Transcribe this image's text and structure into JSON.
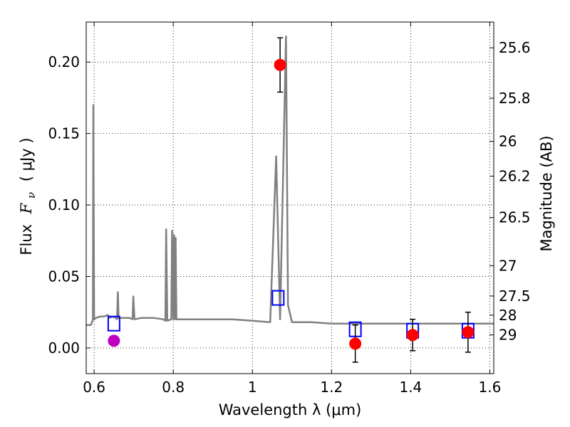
{
  "chart_data": {
    "type": "scatter",
    "xlabel": "Wavelength  λ (μm)",
    "ylabel_prefix": "Flux",
    "ylabel_symbol": "F",
    "ylabel_subscript": "ν",
    "ylabel_unit": "( μJy )",
    "y2label": "Magnitude (AB)",
    "xlim": [
      0.58,
      1.61
    ],
    "ylim": [
      -0.018,
      0.228
    ],
    "grid": true,
    "x_ticks": [
      {
        "value": 0.6,
        "label": "0.6"
      },
      {
        "value": 0.8,
        "label": "0.8"
      },
      {
        "value": 1.0,
        "label": "1"
      },
      {
        "value": 1.2,
        "label": "1.2"
      },
      {
        "value": 1.4,
        "label": "1.4"
      },
      {
        "value": 1.6,
        "label": "1.6"
      }
    ],
    "y_ticks": [
      {
        "value": 0.0,
        "label": "0.00"
      },
      {
        "value": 0.05,
        "label": "0.05"
      },
      {
        "value": 0.1,
        "label": "0.10"
      },
      {
        "value": 0.15,
        "label": "0.15"
      },
      {
        "value": 0.2,
        "label": "0.20"
      }
    ],
    "y2_ticks": [
      {
        "flux": 0.21,
        "label": "25.6"
      },
      {
        "flux": 0.1747,
        "label": "25.8"
      },
      {
        "flux": 0.1445,
        "label": "26"
      },
      {
        "flux": 0.1202,
        "label": "26.2"
      },
      {
        "flux": 0.0912,
        "label": "26.5"
      },
      {
        "flux": 0.0575,
        "label": "27"
      },
      {
        "flux": 0.0363,
        "label": "27.5"
      },
      {
        "flux": 0.0229,
        "label": "28"
      },
      {
        "flux": 0.0091,
        "label": "29"
      }
    ],
    "series": [
      {
        "style": "line",
        "color": "#808080",
        "points": [
          [
            0.58,
            0.016
          ],
          [
            0.592,
            0.016
          ],
          [
            0.597,
            0.02
          ],
          [
            0.598,
            0.17
          ],
          [
            0.6,
            0.02
          ],
          [
            0.605,
            0.021
          ],
          [
            0.615,
            0.022
          ],
          [
            0.625,
            0.022
          ],
          [
            0.635,
            0.023
          ],
          [
            0.64,
            0.021
          ],
          [
            0.645,
            0.022
          ],
          [
            0.655,
            0.021
          ],
          [
            0.658,
            0.02
          ],
          [
            0.66,
            0.039
          ],
          [
            0.662,
            0.021
          ],
          [
            0.675,
            0.021
          ],
          [
            0.69,
            0.021
          ],
          [
            0.697,
            0.02
          ],
          [
            0.699,
            0.036
          ],
          [
            0.702,
            0.02
          ],
          [
            0.72,
            0.021
          ],
          [
            0.75,
            0.021
          ],
          [
            0.775,
            0.02
          ],
          [
            0.78,
            0.019
          ],
          [
            0.782,
            0.083
          ],
          [
            0.785,
            0.019
          ],
          [
            0.795,
            0.02
          ],
          [
            0.797,
            0.082
          ],
          [
            0.8,
            0.02
          ],
          [
            0.802,
            0.079
          ],
          [
            0.804,
            0.02
          ],
          [
            0.806,
            0.077
          ],
          [
            0.808,
            0.02
          ],
          [
            0.83,
            0.02
          ],
          [
            0.9,
            0.02
          ],
          [
            0.95,
            0.02
          ],
          [
            1.0,
            0.019
          ],
          [
            1.045,
            0.018
          ],
          [
            1.06,
            0.134
          ],
          [
            1.07,
            0.02
          ],
          [
            1.085,
            0.218
          ],
          [
            1.09,
            0.03
          ],
          [
            1.1,
            0.018
          ],
          [
            1.15,
            0.018
          ],
          [
            1.2,
            0.017
          ],
          [
            1.3,
            0.017
          ],
          [
            1.4,
            0.017
          ],
          [
            1.5,
            0.017
          ],
          [
            1.61,
            0.017
          ]
        ]
      },
      {
        "style": "open-square",
        "color": "#0000ff",
        "points": [
          [
            0.65,
            0.017
          ],
          [
            1.065,
            0.035
          ],
          [
            1.26,
            0.013
          ],
          [
            1.405,
            0.012
          ],
          [
            1.545,
            0.012
          ]
        ]
      },
      {
        "style": "filled-circle",
        "color": "#ff0000",
        "points": [
          {
            "x": 1.07,
            "y": 0.198,
            "err": 0.019
          },
          {
            "x": 1.26,
            "y": 0.003,
            "err": 0.013
          },
          {
            "x": 1.405,
            "y": 0.009,
            "err": 0.011
          },
          {
            "x": 1.545,
            "y": 0.011,
            "err": 0.014
          }
        ]
      },
      {
        "style": "filled-circle",
        "color": "#bf00bf",
        "points": [
          {
            "x": 0.65,
            "y": 0.005,
            "err": 0.003
          }
        ]
      }
    ]
  }
}
